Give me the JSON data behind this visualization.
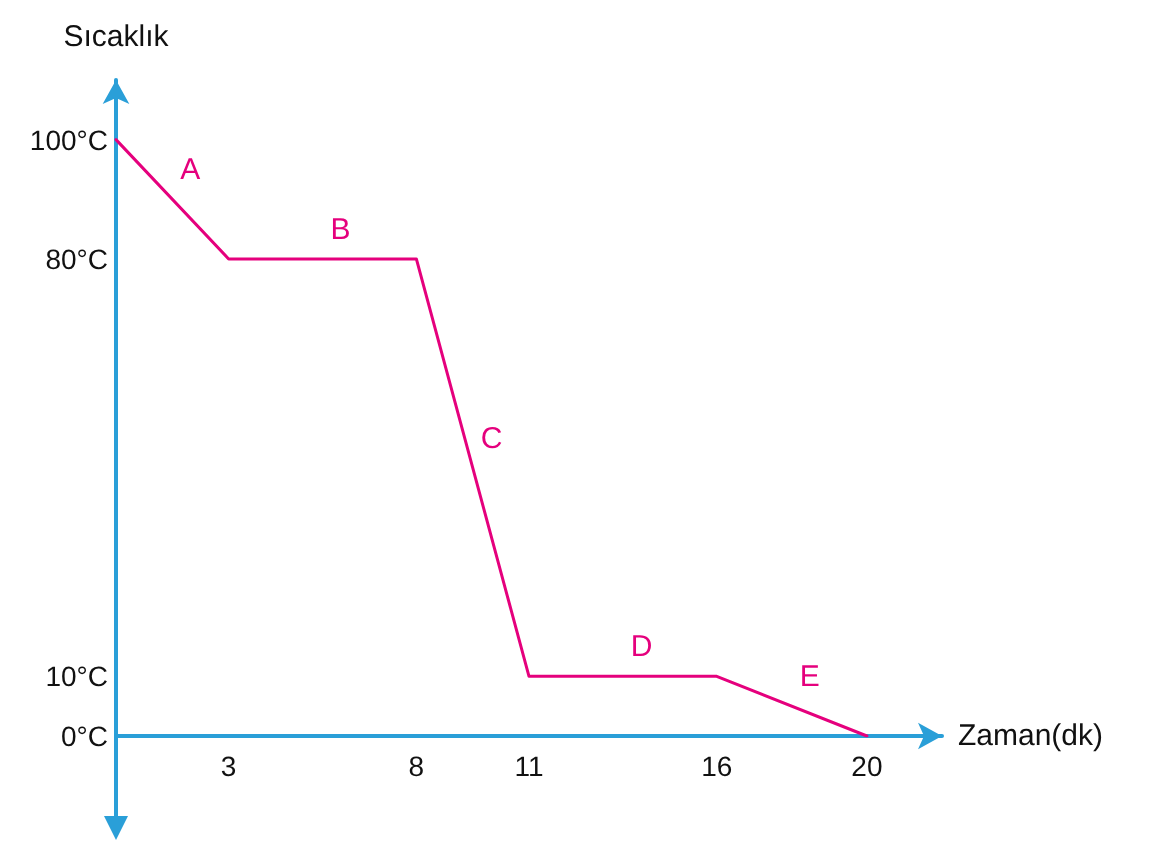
{
  "chart_data": {
    "type": "line",
    "xlabel": "Zaman(dk)",
    "ylabel": "Sıcaklık",
    "x": [
      0,
      3,
      8,
      11,
      16,
      20
    ],
    "series": [
      {
        "color": "#e5007d",
        "values": [
          100,
          80,
          80,
          10,
          10,
          0
        ]
      }
    ],
    "xlim": [
      0,
      22
    ],
    "ylim": [
      0,
      110
    ],
    "xticks": [
      3,
      8,
      11,
      16,
      20
    ],
    "yticks": [
      {
        "value": 0,
        "label": "0°C"
      },
      {
        "value": 10,
        "label": "10°C"
      },
      {
        "value": 80,
        "label": "80°C"
      },
      {
        "value": 100,
        "label": "100°C"
      }
    ],
    "annotations": [
      {
        "text": "A",
        "x": 1.5,
        "y": 90
      },
      {
        "text": "B",
        "x": 5.5,
        "y": 80
      },
      {
        "text": "C",
        "x": 9.5,
        "y": 45
      },
      {
        "text": "D",
        "x": 13.5,
        "y": 10
      },
      {
        "text": "E",
        "x": 18,
        "y": 5
      }
    ],
    "grid": false,
    "marker": "none",
    "line_style": "solid"
  }
}
